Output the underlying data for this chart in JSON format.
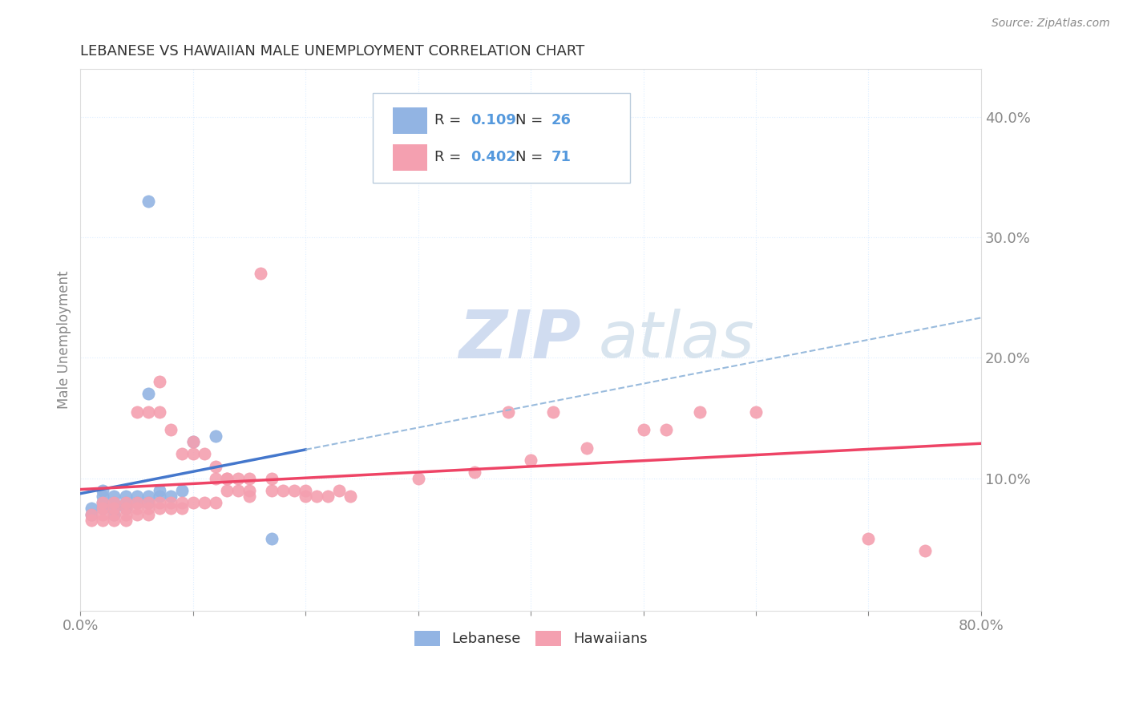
{
  "title": "LEBANESE VS HAWAIIAN MALE UNEMPLOYMENT CORRELATION CHART",
  "source": "Source: ZipAtlas.com",
  "ylabel": "Male Unemployment",
  "xlim": [
    0.0,
    0.8
  ],
  "ylim": [
    -0.01,
    0.44
  ],
  "yticks": [
    0.1,
    0.2,
    0.3,
    0.4
  ],
  "ytick_labels": [
    "10.0%",
    "20.0%",
    "30.0%",
    "40.0%"
  ],
  "xticks": [
    0.0,
    0.1,
    0.2,
    0.3,
    0.4,
    0.5,
    0.6,
    0.7,
    0.8
  ],
  "xtick_labels": [
    "0.0%",
    "",
    "",
    "",
    "",
    "",
    "",
    "",
    "80.0%"
  ],
  "legend_r1": "R =  0.109   N = 26",
  "legend_r2": "R =  0.402   N = 71",
  "legend_label1": "Lebanese",
  "legend_label2": "Hawaiians",
  "color_lebanese": "#92B4E3",
  "color_hawaiian": "#F4A0B0",
  "trendline_color_leb_solid": "#4477CC",
  "trendline_color_leb_dash": "#99BBDD",
  "trendline_color_haw": "#EE4466",
  "background_color": "#FFFFFF",
  "grid_color": "#DDEEFF",
  "tick_color": "#5599DD",
  "legend_text_color": "#333333",
  "legend_num_color": "#5599DD",
  "lebanese_data": [
    [
      0.01,
      0.07
    ],
    [
      0.01,
      0.075
    ],
    [
      0.02,
      0.075
    ],
    [
      0.02,
      0.08
    ],
    [
      0.02,
      0.085
    ],
    [
      0.02,
      0.09
    ],
    [
      0.03,
      0.07
    ],
    [
      0.03,
      0.075
    ],
    [
      0.03,
      0.08
    ],
    [
      0.03,
      0.085
    ],
    [
      0.04,
      0.075
    ],
    [
      0.04,
      0.08
    ],
    [
      0.04,
      0.085
    ],
    [
      0.05,
      0.08
    ],
    [
      0.05,
      0.085
    ],
    [
      0.06,
      0.08
    ],
    [
      0.06,
      0.085
    ],
    [
      0.06,
      0.17
    ],
    [
      0.07,
      0.085
    ],
    [
      0.07,
      0.09
    ],
    [
      0.08,
      0.085
    ],
    [
      0.09,
      0.09
    ],
    [
      0.1,
      0.13
    ],
    [
      0.12,
      0.135
    ],
    [
      0.06,
      0.33
    ],
    [
      0.17,
      0.05
    ]
  ],
  "hawaiian_data": [
    [
      0.01,
      0.065
    ],
    [
      0.01,
      0.07
    ],
    [
      0.02,
      0.065
    ],
    [
      0.02,
      0.07
    ],
    [
      0.02,
      0.075
    ],
    [
      0.02,
      0.08
    ],
    [
      0.03,
      0.065
    ],
    [
      0.03,
      0.07
    ],
    [
      0.03,
      0.075
    ],
    [
      0.03,
      0.08
    ],
    [
      0.04,
      0.065
    ],
    [
      0.04,
      0.07
    ],
    [
      0.04,
      0.075
    ],
    [
      0.04,
      0.08
    ],
    [
      0.05,
      0.07
    ],
    [
      0.05,
      0.075
    ],
    [
      0.05,
      0.08
    ],
    [
      0.05,
      0.155
    ],
    [
      0.06,
      0.07
    ],
    [
      0.06,
      0.075
    ],
    [
      0.06,
      0.08
    ],
    [
      0.06,
      0.155
    ],
    [
      0.07,
      0.075
    ],
    [
      0.07,
      0.08
    ],
    [
      0.07,
      0.155
    ],
    [
      0.07,
      0.18
    ],
    [
      0.08,
      0.075
    ],
    [
      0.08,
      0.08
    ],
    [
      0.08,
      0.14
    ],
    [
      0.09,
      0.075
    ],
    [
      0.09,
      0.08
    ],
    [
      0.09,
      0.12
    ],
    [
      0.1,
      0.08
    ],
    [
      0.1,
      0.12
    ],
    [
      0.1,
      0.13
    ],
    [
      0.11,
      0.08
    ],
    [
      0.11,
      0.12
    ],
    [
      0.12,
      0.08
    ],
    [
      0.12,
      0.1
    ],
    [
      0.12,
      0.11
    ],
    [
      0.13,
      0.09
    ],
    [
      0.13,
      0.1
    ],
    [
      0.13,
      0.1
    ],
    [
      0.14,
      0.09
    ],
    [
      0.14,
      0.1
    ],
    [
      0.15,
      0.09
    ],
    [
      0.15,
      0.1
    ],
    [
      0.15,
      0.085
    ],
    [
      0.16,
      0.27
    ],
    [
      0.17,
      0.09
    ],
    [
      0.17,
      0.1
    ],
    [
      0.18,
      0.09
    ],
    [
      0.19,
      0.09
    ],
    [
      0.2,
      0.085
    ],
    [
      0.2,
      0.09
    ],
    [
      0.21,
      0.085
    ],
    [
      0.22,
      0.085
    ],
    [
      0.23,
      0.09
    ],
    [
      0.24,
      0.085
    ],
    [
      0.3,
      0.1
    ],
    [
      0.35,
      0.105
    ],
    [
      0.38,
      0.155
    ],
    [
      0.4,
      0.115
    ],
    [
      0.42,
      0.155
    ],
    [
      0.45,
      0.125
    ],
    [
      0.5,
      0.14
    ],
    [
      0.52,
      0.14
    ],
    [
      0.55,
      0.155
    ],
    [
      0.6,
      0.155
    ],
    [
      0.7,
      0.05
    ],
    [
      0.75,
      0.04
    ]
  ],
  "leb_trendline_x0": 0.0,
  "leb_trendline_y0": 0.075,
  "leb_trendline_x1": 0.25,
  "leb_trendline_y1": 0.115,
  "haw_trendline_x0": 0.0,
  "haw_trendline_y0": 0.065,
  "haw_trendline_x1": 0.8,
  "haw_trendline_y1": 0.175,
  "dash_trendline_x0": 0.3,
  "dash_trendline_y0": 0.105,
  "dash_trendline_x1": 0.8,
  "dash_trendline_y1": 0.175
}
